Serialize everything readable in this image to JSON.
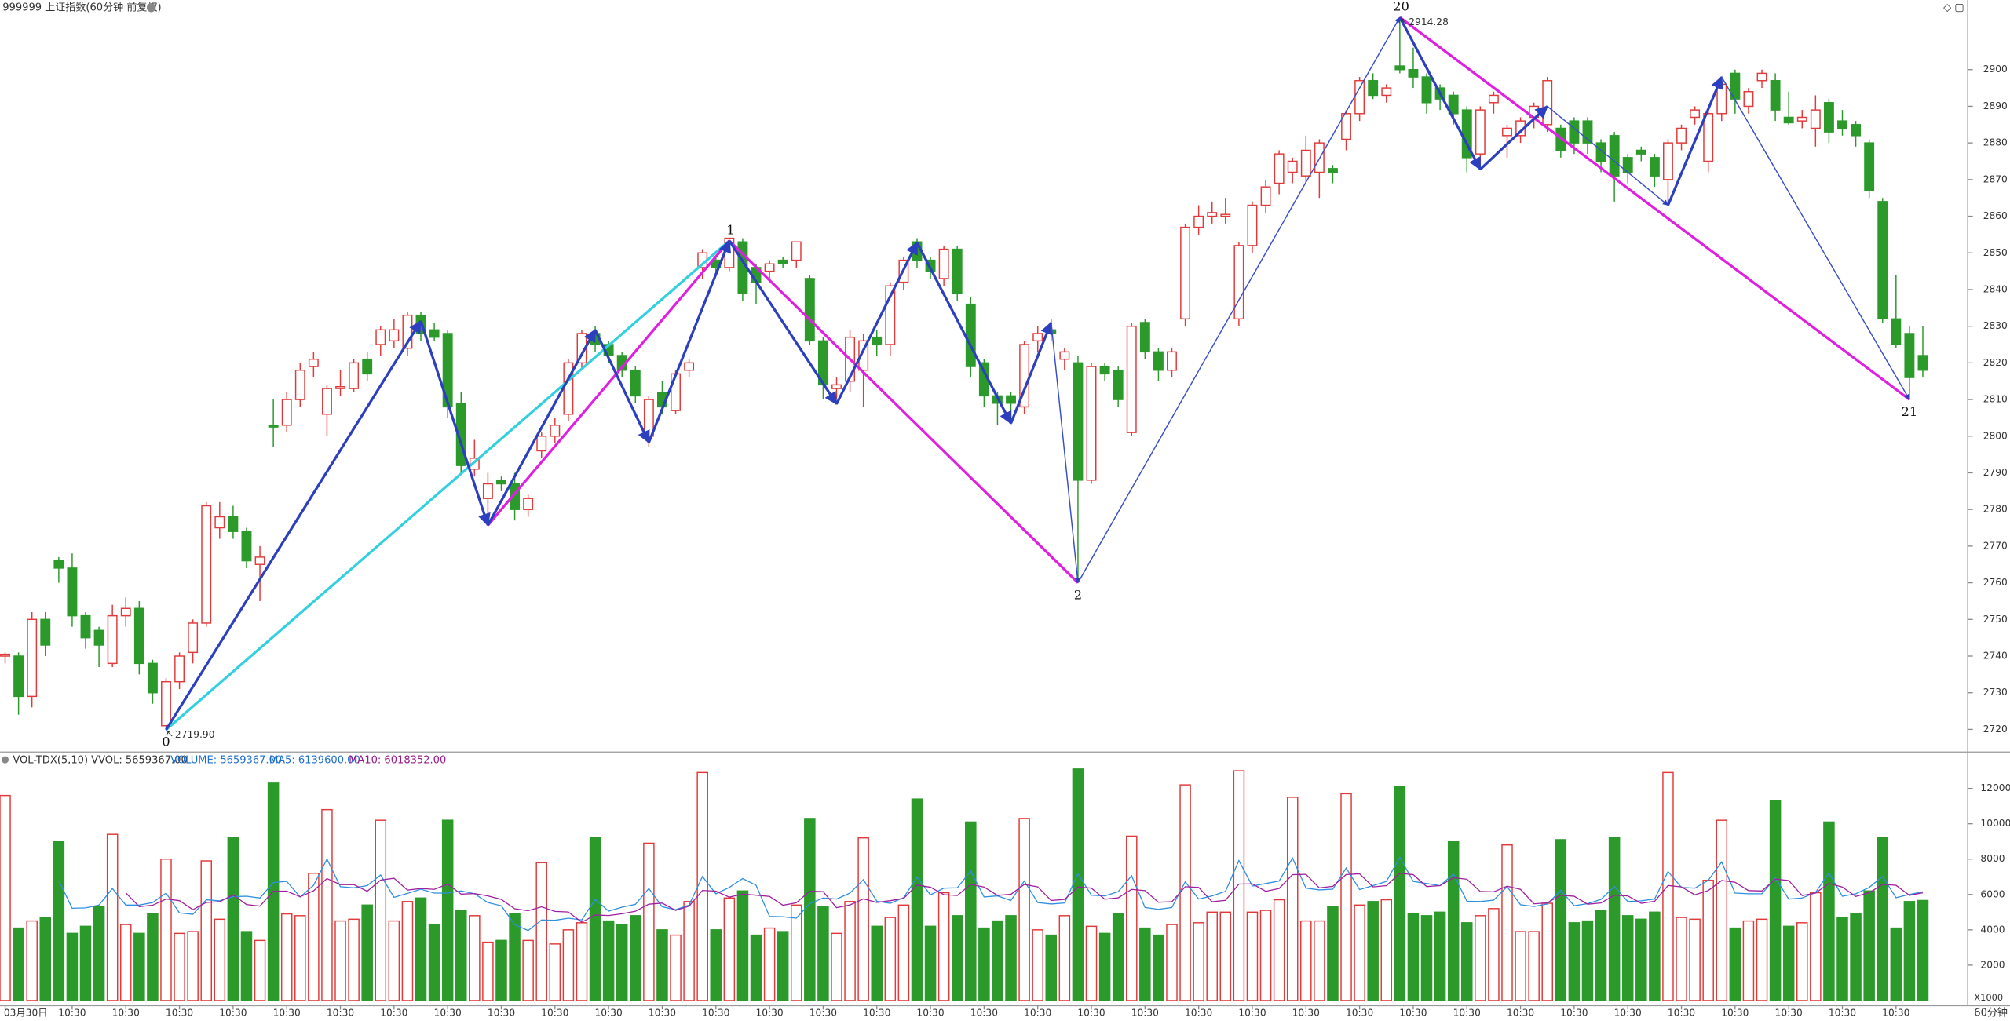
{
  "chart_data": {
    "type": "candlestick",
    "title": "999999 上证指数(60分钟 前复权)",
    "volume_title": "VOL-TDX(5,10) VVOL: 5659367.00",
    "volume_legend": [
      {
        "text": "VOLUME: 5659367.00",
        "color": "#1f6fd0"
      },
      {
        "text": "MA5: 6139600.00",
        "color": "#1f6fd0"
      },
      {
        "text": "MA10: 6018352.00",
        "color": "#9a1a8a"
      }
    ],
    "period_label": "60分钟",
    "volume_unit": "X1000",
    "up_color": "#e23a3a",
    "down_color": "#2b9a2b",
    "ma5_color": "#2f8fe0",
    "ma10_color": "#a020a0",
    "ylim": [
      2714,
      2919
    ],
    "yticks": [
      2720,
      2730,
      2740,
      2750,
      2760,
      2770,
      2780,
      2790,
      2800,
      2810,
      2820,
      2830,
      2840,
      2850,
      2860,
      2870,
      2880,
      2890,
      2900
    ],
    "vlim": [
      0,
      13300
    ],
    "vticks": [
      2000,
      4000,
      6000,
      8000,
      10000,
      12000
    ],
    "categories": [
      "03月30日",
      null,
      null,
      null,
      null,
      "10:30",
      null,
      null,
      null,
      "10:30",
      null,
      null,
      null,
      "10:30",
      null,
      null,
      null,
      "10:30",
      null,
      null,
      null,
      "10:30",
      null,
      null,
      null,
      "10:30",
      null,
      null,
      null,
      "10:30",
      null,
      null,
      null,
      "10:30",
      null,
      null,
      null,
      "10:30",
      null,
      null,
      null,
      "10:30",
      null,
      null,
      null,
      "10:30",
      null,
      null,
      null,
      "10:30",
      null,
      null,
      null,
      "10:30",
      null,
      null,
      null,
      "10:30",
      null,
      null,
      null,
      "10:30",
      null,
      null,
      null,
      "10:30",
      null,
      null,
      null,
      "10:30",
      null,
      null,
      null,
      "10:30",
      null,
      null,
      null,
      "10:30",
      null,
      null,
      null,
      "10:30",
      null,
      null,
      null,
      "10:30",
      null,
      null,
      null,
      "10:30",
      null,
      null,
      null,
      "10:30",
      null,
      null,
      null,
      "10:30",
      null,
      null,
      null,
      "10:30",
      null,
      null,
      null,
      "10:30",
      null,
      null,
      null,
      "10:30",
      null,
      null,
      null,
      "10:30",
      null,
      null,
      null,
      "10:30",
      null,
      null,
      null,
      "10:30",
      null,
      null,
      null,
      "10:30",
      null,
      null,
      null,
      "10:30",
      null,
      null,
      null,
      "10:30",
      null,
      null,
      null,
      "10:30",
      null,
      null,
      null,
      "10:30",
      null,
      null
    ],
    "candles": [
      [
        2740,
        2741,
        2738,
        2740.5
      ],
      [
        2740,
        2741,
        2724,
        2729
      ],
      [
        2729,
        2752,
        2726,
        2750
      ],
      [
        2750,
        2752,
        2740,
        2743
      ],
      [
        2766,
        2767,
        2760,
        2764
      ],
      [
        2764,
        2768,
        2748,
        2751
      ],
      [
        2751,
        2752,
        2742,
        2745
      ],
      [
        2747,
        2748,
        2737,
        2743
      ],
      [
        2738,
        2754,
        2737,
        2751
      ],
      [
        2751,
        2756,
        2748,
        2753
      ],
      [
        2753,
        2755,
        2735,
        2738
      ],
      [
        2738,
        2739,
        2727,
        2730
      ],
      [
        2721,
        2734,
        2719.9,
        2733
      ],
      [
        2733,
        2741,
        2731,
        2740
      ],
      [
        2741,
        2750,
        2738,
        2749
      ],
      [
        2749,
        2782,
        2748,
        2781
      ],
      [
        2775,
        2782,
        2772,
        2778
      ],
      [
        2778,
        2781,
        2772,
        2774
      ],
      [
        2774,
        2775,
        2764,
        2766
      ],
      [
        2765,
        2770,
        2755,
        2767
      ],
      [
        2803,
        2810,
        2797,
        2802.5
      ],
      [
        2803,
        2812,
        2801,
        2810
      ],
      [
        2810,
        2820,
        2808,
        2818
      ],
      [
        2819,
        2823,
        2816,
        2821
      ],
      [
        2806,
        2814,
        2800,
        2813
      ],
      [
        2813,
        2818,
        2811,
        2813.5
      ],
      [
        2813,
        2821,
        2812,
        2820
      ],
      [
        2821,
        2823,
        2815,
        2817
      ],
      [
        2825,
        2830,
        2822,
        2829
      ],
      [
        2826,
        2832,
        2824,
        2829
      ],
      [
        2824,
        2834,
        2822,
        2833
      ],
      [
        2833,
        2834,
        2826,
        2828
      ],
      [
        2829,
        2831,
        2826,
        2827
      ],
      [
        2828,
        2829,
        2805,
        2808
      ],
      [
        2809,
        2812,
        2790,
        2792
      ],
      [
        2791,
        2799,
        2789,
        2794
      ],
      [
        2783,
        2790,
        2776,
        2787
      ],
      [
        2788,
        2789,
        2785,
        2787
      ],
      [
        2787,
        2790,
        2777,
        2780
      ],
      [
        2780,
        2784,
        2778,
        2783
      ],
      [
        2796,
        2801,
        2794,
        2800
      ],
      [
        2800,
        2805,
        2798,
        2803
      ],
      [
        2806,
        2821,
        2804,
        2820
      ],
      [
        2820,
        2829,
        2818,
        2828
      ],
      [
        2828,
        2830,
        2823,
        2825
      ],
      [
        2825,
        2826,
        2820,
        2822
      ],
      [
        2822,
        2823,
        2816,
        2818
      ],
      [
        2818,
        2819,
        2809,
        2811
      ],
      [
        2800,
        2811,
        2797,
        2810
      ],
      [
        2812,
        2815,
        2806,
        2808
      ],
      [
        2807,
        2818,
        2806,
        2817
      ],
      [
        2818,
        2821,
        2816,
        2820
      ],
      [
        2846,
        2851,
        2843,
        2850
      ],
      [
        2848,
        2849,
        2844,
        2846
      ],
      [
        2846,
        2854,
        2845,
        2854
      ],
      [
        2853,
        2854,
        2837,
        2839
      ],
      [
        2846,
        2847,
        2836,
        2842
      ],
      [
        2845,
        2848,
        2843,
        2847
      ],
      [
        2848,
        2849,
        2846,
        2847
      ],
      [
        2848,
        2853,
        2846,
        2853
      ],
      [
        2843,
        2844,
        2825,
        2826
      ],
      [
        2826,
        2827,
        2810,
        2814
      ],
      [
        2813,
        2816,
        2810,
        2814
      ],
      [
        2815,
        2829,
        2812,
        2827
      ],
      [
        2818,
        2828,
        2808,
        2826
      ],
      [
        2827,
        2829,
        2822,
        2825
      ],
      [
        2825,
        2842,
        2822,
        2841
      ],
      [
        2842,
        2849,
        2840,
        2848
      ],
      [
        2853,
        2854,
        2846,
        2848
      ],
      [
        2848,
        2849,
        2843,
        2845
      ],
      [
        2843,
        2852,
        2841,
        2851
      ],
      [
        2851,
        2852,
        2837,
        2839
      ],
      [
        2836,
        2838,
        2816,
        2819
      ],
      [
        2820,
        2821,
        2808,
        2811
      ],
      [
        2811,
        2812,
        2803,
        2809
      ],
      [
        2811,
        2812,
        2805,
        2809
      ],
      [
        2808,
        2826,
        2806,
        2825
      ],
      [
        2826,
        2830,
        2823,
        2828
      ],
      [
        2829,
        2832,
        2826,
        2828
      ],
      [
        2821,
        2824,
        2818,
        2823
      ],
      [
        2820,
        2822,
        2760,
        2788
      ],
      [
        2788,
        2820,
        2787,
        2819
      ],
      [
        2819,
        2820,
        2815,
        2817
      ],
      [
        2818,
        2819,
        2808,
        2810
      ],
      [
        2801,
        2831,
        2800,
        2830
      ],
      [
        2831,
        2832,
        2821,
        2823
      ],
      [
        2823,
        2824,
        2815,
        2818
      ],
      [
        2818,
        2824,
        2816,
        2823
      ],
      [
        2832,
        2858,
        2830,
        2857
      ],
      [
        2857,
        2863,
        2855,
        2860
      ],
      [
        2860,
        2864,
        2858,
        2861
      ],
      [
        2860,
        2865,
        2858,
        2860.5
      ],
      [
        2832,
        2853,
        2830,
        2852
      ],
      [
        2852,
        2864,
        2850,
        2863
      ],
      [
        2863,
        2870,
        2861,
        2868
      ],
      [
        2869,
        2878,
        2866,
        2877
      ],
      [
        2872,
        2876,
        2869,
        2875
      ],
      [
        2871,
        2882,
        2869,
        2878
      ],
      [
        2872,
        2881,
        2865,
        2880
      ],
      [
        2873,
        2874,
        2869,
        2872
      ],
      [
        2881,
        2889,
        2878,
        2888
      ],
      [
        2888,
        2898,
        2886,
        2897
      ],
      [
        2897,
        2899,
        2892,
        2893
      ],
      [
        2893,
        2896,
        2891,
        2895
      ],
      [
        2901,
        2914.28,
        2899,
        2900
      ],
      [
        2900,
        2906,
        2895,
        2898
      ],
      [
        2898,
        2899,
        2888,
        2891
      ],
      [
        2895,
        2896,
        2889,
        2892
      ],
      [
        2893,
        2894,
        2885,
        2888
      ],
      [
        2889,
        2890,
        2872,
        2876
      ],
      [
        2877,
        2890,
        2874,
        2889
      ],
      [
        2891,
        2894,
        2888,
        2893
      ],
      [
        2882,
        2885,
        2876,
        2884
      ],
      [
        2882,
        2887,
        2880,
        2886
      ],
      [
        2887,
        2891,
        2884,
        2890
      ],
      [
        2885,
        2898,
        2883,
        2897
      ],
      [
        2884,
        2885,
        2876,
        2878
      ],
      [
        2886,
        2887,
        2877,
        2880
      ],
      [
        2886,
        2887,
        2877,
        2880
      ],
      [
        2880,
        2881,
        2872,
        2875
      ],
      [
        2882,
        2883,
        2864,
        2871
      ],
      [
        2876,
        2877,
        2869,
        2872
      ],
      [
        2878,
        2879,
        2875,
        2877
      ],
      [
        2876,
        2877,
        2868,
        2871
      ],
      [
        2870,
        2881,
        2863,
        2880
      ],
      [
        2880,
        2885,
        2878,
        2884
      ],
      [
        2887,
        2890,
        2885,
        2889
      ],
      [
        2875,
        2889,
        2872,
        2888
      ],
      [
        2888,
        2898,
        2886,
        2896
      ],
      [
        2899,
        2900,
        2888,
        2892
      ],
      [
        2890,
        2895,
        2888,
        2894
      ],
      [
        2897,
        2900,
        2895,
        2899
      ],
      [
        2897,
        2899,
        2886,
        2889
      ],
      [
        2887,
        2894,
        2885,
        2885.5
      ],
      [
        2886,
        2889,
        2884,
        2887
      ],
      [
        2884,
        2893,
        2879,
        2889
      ],
      [
        2891,
        2892,
        2880,
        2883
      ],
      [
        2886,
        2889,
        2882,
        2884
      ],
      [
        2885,
        2886,
        2879,
        2882
      ],
      [
        2880,
        2881,
        2865,
        2867
      ],
      [
        2864,
        2865,
        2831,
        2832
      ],
      [
        2832,
        2844,
        2824,
        2825
      ],
      [
        2828,
        2830,
        2810,
        2816
      ],
      [
        2822,
        2830,
        2816,
        2818
      ]
    ],
    "volume": [
      11600,
      4100,
      4500,
      4700,
      9000,
      3800,
      4200,
      5300,
      9400,
      4300,
      3800,
      4900,
      8000,
      3800,
      3900,
      7900,
      4600,
      9200,
      3900,
      3400,
      12300,
      4900,
      4800,
      7200,
      10800,
      4500,
      4600,
      5400,
      10200,
      4500,
      5600,
      5800,
      4300,
      10200,
      5100,
      4800,
      3300,
      3400,
      4900,
      3400,
      7800,
      3200,
      4000,
      4400,
      9200,
      4500,
      4300,
      4800,
      8900,
      4000,
      3700,
      5600,
      12900,
      4000,
      5800,
      6200,
      3700,
      4100,
      3900,
      5400,
      10300,
      5300,
      3800,
      5600,
      9200,
      4200,
      4700,
      5400,
      11400,
      4200,
      6100,
      4800,
      10100,
      4100,
      4500,
      4800,
      10300,
      4000,
      3700,
      4800,
      13100,
      4200,
      3800,
      4900,
      9300,
      4100,
      3700,
      4300,
      12200,
      4400,
      5000,
      5000,
      13000,
      5000,
      5100,
      5700,
      11500,
      4500,
      4500,
      5300,
      11700,
      5400,
      5600,
      5700,
      12100,
      4900,
      4800,
      5000,
      9000,
      4400,
      4800,
      5200,
      8800,
      3900,
      3900,
      5500,
      9100,
      4400,
      4500,
      5100,
      9200,
      4800,
      4600,
      5000,
      12900,
      4700,
      4600,
      6800,
      10200,
      4100,
      4500,
      4600,
      11300,
      4200,
      4400,
      6100,
      10100,
      4700,
      4900,
      6200,
      9200,
      4100,
      5600,
      5659.367
    ],
    "zigzag": [
      {
        "from": [
          12,
          2719.9
        ],
        "to": [
          54,
          2853.3
        ],
        "color": "#33d0e0",
        "style": "thick"
      },
      {
        "from": [
          36,
          2775.7
        ],
        "to": [
          54,
          2853.3
        ],
        "color": "#e020e0",
        "style": "thick"
      },
      {
        "from": [
          54,
          2853.3
        ],
        "to": [
          80,
          2760
        ],
        "color": "#e020e0",
        "style": "thick"
      },
      {
        "from": [
          104,
          2914.28
        ],
        "to": [
          142,
          2810
        ],
        "color": "#e020e0",
        "style": "thick"
      },
      {
        "from": [
          12,
          2719.9
        ],
        "to": [
          31,
          2831.4
        ],
        "color": "#2b3fbf",
        "style": "thick"
      },
      {
        "from": [
          31,
          2831.4
        ],
        "to": [
          36,
          2775.7
        ],
        "color": "#2b3fbf",
        "style": "thick"
      },
      {
        "from": [
          36,
          2775.7
        ],
        "to": [
          44,
          2829
        ],
        "color": "#2b3fbf",
        "style": "thick"
      },
      {
        "from": [
          44,
          2829
        ],
        "to": [
          48,
          2798.3
        ],
        "color": "#2b3fbf",
        "style": "thick"
      },
      {
        "from": [
          48,
          2798.3
        ],
        "to": [
          54,
          2853.3
        ],
        "color": "#2b3fbf",
        "style": "thick"
      },
      {
        "from": [
          54,
          2853.3
        ],
        "to": [
          62,
          2808.8
        ],
        "color": "#2b3fbf",
        "style": "thick"
      },
      {
        "from": [
          62,
          2808.8
        ],
        "to": [
          68,
          2852.8
        ],
        "color": "#2b3fbf",
        "style": "thick"
      },
      {
        "from": [
          68,
          2852.8
        ],
        "to": [
          75,
          2803.5
        ],
        "color": "#2b3fbf",
        "style": "thick"
      },
      {
        "from": [
          75,
          2803.5
        ],
        "to": [
          78,
          2831
        ],
        "color": "#2b3fbf",
        "style": "thick"
      },
      {
        "from": [
          78,
          2831
        ],
        "to": [
          80,
          2760
        ],
        "color": "#3a4fc8",
        "style": "thin"
      },
      {
        "from": [
          80,
          2760
        ],
        "to": [
          104,
          2914.28
        ],
        "color": "#3a4fc8",
        "style": "thin"
      },
      {
        "from": [
          104,
          2914.28
        ],
        "to": [
          110,
          2872.8
        ],
        "color": "#2b3fbf",
        "style": "thick"
      },
      {
        "from": [
          110,
          2872.8
        ],
        "to": [
          115,
          2890
        ],
        "color": "#2b3fbf",
        "style": "thick"
      },
      {
        "from": [
          115,
          2890
        ],
        "to": [
          124,
          2863
        ],
        "color": "#3a4fc8",
        "style": "thin"
      },
      {
        "from": [
          124,
          2863
        ],
        "to": [
          128,
          2898
        ],
        "color": "#2b3fbf",
        "style": "thick"
      },
      {
        "from": [
          128,
          2898
        ],
        "to": [
          142,
          2810
        ],
        "color": "#3a4fc8",
        "style": "thin"
      }
    ],
    "pivots": [
      {
        "label": "0",
        "index": 12,
        "price": 2719.9,
        "side": "below"
      },
      {
        "label": "1",
        "index": 54,
        "price": 2853.3,
        "side": "above"
      },
      {
        "label": "2",
        "index": 80,
        "price": 2760,
        "side": "below"
      },
      {
        "label": "20",
        "index": 104,
        "price": 2914.28,
        "side": "above"
      },
      {
        "label": "21",
        "index": 142,
        "price": 2810,
        "side": "below"
      }
    ],
    "price_labels": [
      {
        "index": 104,
        "value": 2914.28
      },
      {
        "index": 12,
        "value": 2719.9,
        "label": "2719.90"
      }
    ]
  }
}
